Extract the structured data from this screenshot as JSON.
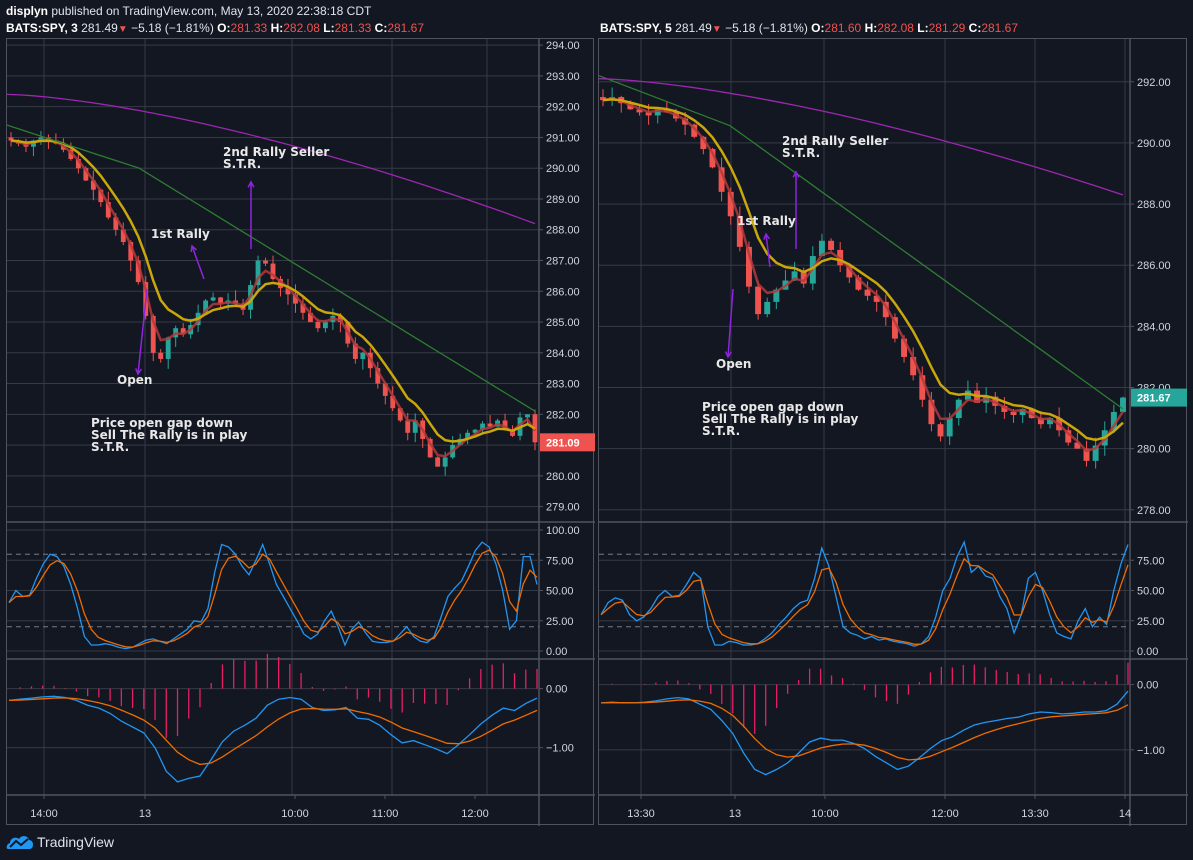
{
  "header": {
    "author": "displyn",
    "published_text": "published on TradingView.com, May 13, 2020 22:38:18 CDT"
  },
  "brand": {
    "name": "TradingView",
    "logo_icon": "tradingview-cloud-icon",
    "color": "#2196f3"
  },
  "colors": {
    "background": "#131722",
    "grid": "#363a45",
    "border": "#50535e",
    "up": "#26a69a",
    "down": "#ef5350",
    "ema_fast": "#b33a3a",
    "ema_slow": "#c9a70a",
    "ma_green": "#2e7d32",
    "ma_purple": "#9c27b0",
    "stoch_k": "#2196f3",
    "stoch_d": "#ef6c00",
    "macd_hist": "#e91e63",
    "annotation_arrow": "#8e24e0",
    "price_label_down": "#ef5350",
    "price_label_up": "#26a69a"
  },
  "charts": [
    {
      "id": "left",
      "legend": {
        "symbol": "BATS:SPY, 3",
        "last": "281.49",
        "change": "−5.18 (−1.81%)",
        "O": "281.33",
        "H": "282.08",
        "L": "281.33",
        "C": "281.67"
      },
      "price_axis": [
        "294.00",
        "293.00",
        "292.00",
        "291.00",
        "290.00",
        "289.00",
        "288.00",
        "287.00",
        "286.00",
        "285.00",
        "284.00",
        "283.00",
        "282.00",
        "281.00",
        "280.00",
        "279.00"
      ],
      "price_label": {
        "value": "281.09",
        "color": "#ef5350"
      },
      "stoch_axis": [
        "100.00",
        "75.00",
        "50.00",
        "25.00",
        "0.00"
      ],
      "macd_axis": [
        "0.00",
        "−1.00"
      ],
      "time_axis": [
        "14:00",
        "13",
        "10:00",
        "11:00",
        "12:00"
      ],
      "annotations": {
        "first_rally": "1st Rally",
        "second_rally_line1": "2nd Rally Seller",
        "second_rally_line2": "S.T.R.",
        "open": "Open",
        "note_line1": "Price open gap down",
        "note_line2": "Sell The Rally is in play",
        "note_line3": "S.T.R."
      }
    },
    {
      "id": "right",
      "legend": {
        "symbol": "BATS:SPY, 5",
        "last": "281.49",
        "change": "−5.18 (−1.81%)",
        "O": "281.60",
        "H": "282.08",
        "L": "281.29",
        "C": "281.67"
      },
      "price_axis": [
        "292.00",
        "290.00",
        "288.00",
        "286.00",
        "284.00",
        "282.00",
        "280.00",
        "278.00"
      ],
      "price_label": {
        "value": "281.67",
        "color": "#26a69a"
      },
      "stoch_axis": [
        "75.00",
        "50.00",
        "25.00",
        "0.00"
      ],
      "macd_axis": [
        "0.00",
        "−1.00"
      ],
      "time_axis": [
        "13:30",
        "13",
        "10:00",
        "12:00",
        "13:30",
        "14"
      ],
      "annotations": {
        "first_rally": "1st Rally",
        "second_rally_line1": "2nd Rally Seller",
        "second_rally_line2": "S.T.R.",
        "open": "Open",
        "note_line1": "Price open gap down",
        "note_line2": "Sell The Rally is in play",
        "note_line3": "S.T.R."
      }
    }
  ],
  "chart_data": [
    {
      "type": "candlestick",
      "title": "BATS:SPY, 3",
      "timeframe": "3 min",
      "ylim": [
        278.5,
        294.2
      ],
      "x_ticks": [
        "14:00",
        "13",
        "10:00",
        "11:00",
        "12:00"
      ],
      "y_ticks": [
        279,
        280,
        281,
        282,
        283,
        284,
        285,
        286,
        287,
        288,
        289,
        290,
        291,
        292,
        293,
        294
      ],
      "closes_approx": [
        290.9,
        290.8,
        290.7,
        290.9,
        291.0,
        290.9,
        290.8,
        290.6,
        290.3,
        290.0,
        289.6,
        289.3,
        288.9,
        288.4,
        288.0,
        287.6,
        287.0,
        286.3,
        285.2,
        284.0,
        283.8,
        284.5,
        284.8,
        284.6,
        284.9,
        285.3,
        285.7,
        285.8,
        285.6,
        285.7,
        285.6,
        285.4,
        286.2,
        287.0,
        286.9,
        286.4,
        286.1,
        285.9,
        285.6,
        285.3,
        285.0,
        284.8,
        285.0,
        285.2,
        285.0,
        284.3,
        283.8,
        284.0,
        283.5,
        283.0,
        282.6,
        282.2,
        281.8,
        281.4,
        281.8,
        281.2,
        280.6,
        280.3,
        280.6,
        281.0,
        281.2,
        281.4,
        281.5,
        281.7,
        281.6,
        281.8,
        281.5,
        281.3,
        281.9,
        282.0,
        281.09
      ],
      "indicators": {
        "ma_purple_start_end": [
          292.4,
          288.2
        ],
        "ma_green_start_end": [
          291.4,
          282.1
        ],
        "stoch_k_levels": {
          "upper": 80,
          "lower": 20,
          "range": [
            0,
            100
          ]
        },
        "macd_range": [
          -1.7,
          0.4
        ]
      },
      "annotations": [
        "1st Rally",
        "2nd Rally Seller S.T.R.",
        "Open",
        "Price open gap down / Sell The Rally is in play / S.T.R."
      ],
      "last_price": 281.09
    },
    {
      "type": "candlestick",
      "title": "BATS:SPY, 5",
      "timeframe": "5 min",
      "ylim": [
        277.6,
        293.4
      ],
      "x_ticks": [
        "13:30",
        "13",
        "10:00",
        "12:00",
        "13:30",
        "14"
      ],
      "y_ticks": [
        278,
        280,
        282,
        284,
        286,
        288,
        290,
        292
      ],
      "closes_approx": [
        291.4,
        291.5,
        291.3,
        291.1,
        291.0,
        290.9,
        291.1,
        291.0,
        290.8,
        290.6,
        290.2,
        289.8,
        289.2,
        288.4,
        287.6,
        286.6,
        285.3,
        284.4,
        284.8,
        285.2,
        285.5,
        285.8,
        285.4,
        286.3,
        286.8,
        286.5,
        286.0,
        285.6,
        285.2,
        285.0,
        284.8,
        284.3,
        283.6,
        283.0,
        282.4,
        281.6,
        280.8,
        280.4,
        281.0,
        281.6,
        281.9,
        281.5,
        281.7,
        281.4,
        281.2,
        281.1,
        281.3,
        281.0,
        280.8,
        281.0,
        280.6,
        280.2,
        280.0,
        279.6,
        280.1,
        280.6,
        281.2,
        281.67
      ],
      "indicators": {
        "ma_purple_start_end": [
          292.1,
          288.3
        ],
        "ma_green_start_end": [
          292.2,
          281.3
        ],
        "stoch_k_levels": {
          "upper": 80,
          "lower": 20,
          "range": [
            0,
            100
          ]
        },
        "macd_range": [
          -1.6,
          0.3
        ]
      },
      "annotations": [
        "1st Rally",
        "2nd Rally Seller S.T.R.",
        "Open",
        "Price open gap down / Sell The Rally is in play / S.T.R."
      ],
      "last_price": 281.67
    }
  ]
}
